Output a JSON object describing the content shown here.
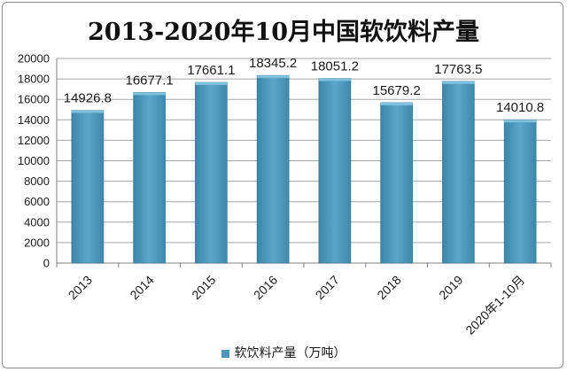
{
  "chart_data": {
    "type": "bar",
    "title": "2013-2020年10月中国软饮料产量",
    "categories": [
      "2013",
      "2014",
      "2015",
      "2016",
      "2017",
      "2018",
      "2019",
      "2020年1-10月"
    ],
    "series": [
      {
        "name": "软饮料产量（万吨）",
        "values": [
          14926.8,
          16677.1,
          17661.1,
          18345.2,
          18051.2,
          15679.2,
          17763.5,
          14010.8
        ],
        "labels": [
          "14926.8",
          "16677.1",
          "17661.1",
          "18345.2",
          "18051.2",
          "15679.2",
          "17763.5",
          "14010.8"
        ]
      }
    ],
    "ylim": [
      0,
      20000
    ],
    "yticks": [
      0,
      2000,
      4000,
      6000,
      8000,
      10000,
      12000,
      14000,
      16000,
      18000,
      20000
    ],
    "grid": true,
    "legend_position": "bottom",
    "bar_color": "#4e97b8",
    "bar_top_color": "#7fc0dd"
  }
}
